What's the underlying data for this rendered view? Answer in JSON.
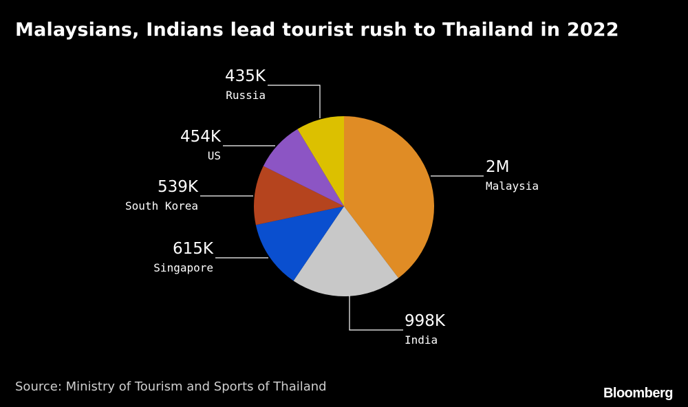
{
  "title": "Malaysians, Indians lead tourist rush to Thailand in 2022",
  "source": "Source: Ministry of Tourism and Sports of Thailand",
  "brand": "Bloomberg",
  "chart_data": {
    "type": "pie",
    "title": "Malaysians, Indians lead tourist rush to Thailand in 2022",
    "start_angle_deg": 0,
    "direction": "clockwise",
    "slices": [
      {
        "label": "Malaysia",
        "value": 2000000,
        "display": "2M",
        "color": "#e08c25"
      },
      {
        "label": "India",
        "value": 998000,
        "display": "998K",
        "color": "#c8c8c8"
      },
      {
        "label": "Singapore",
        "value": 615000,
        "display": "615K",
        "color": "#0a4fcf"
      },
      {
        "label": "South Korea",
        "value": 539000,
        "display": "539K",
        "color": "#b5441e"
      },
      {
        "label": "US",
        "value": 454000,
        "display": "454K",
        "color": "#8c55c4"
      },
      {
        "label": "Russia",
        "value": 435000,
        "display": "435K",
        "color": "#dcc000"
      }
    ]
  }
}
